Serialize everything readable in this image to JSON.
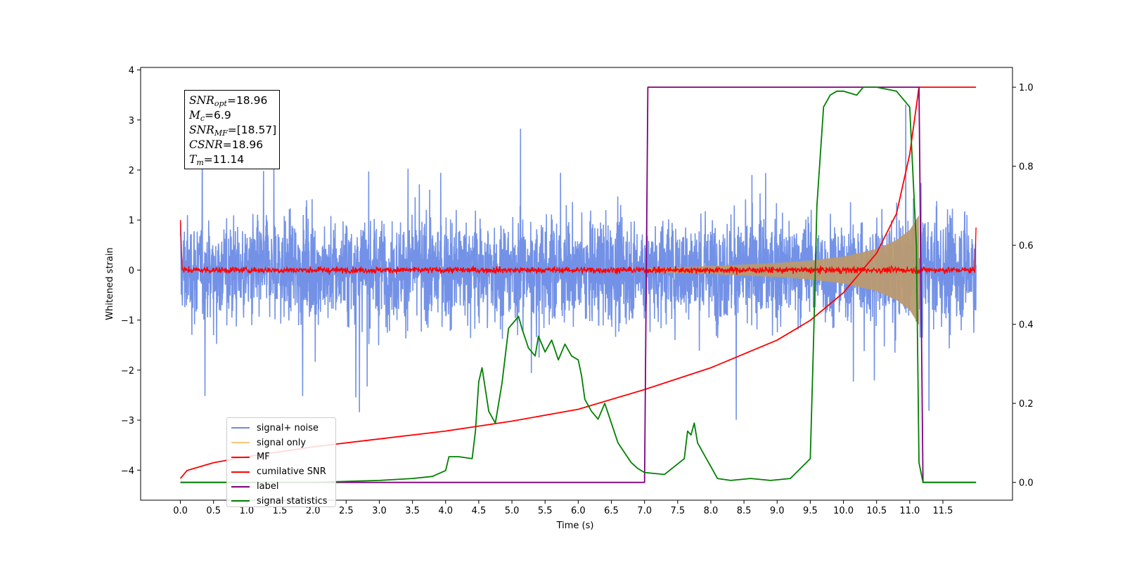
{
  "chart_data": {
    "type": "line",
    "xlabel": "Time (s)",
    "ylabel": "Whitened strain",
    "xlim": [
      -0.6,
      12.55
    ],
    "ylim_left": [
      -4.6,
      4.05
    ],
    "ylim_right": [
      -0.045,
      1.05
    ],
    "x_ticks": [
      "0.0",
      "0.5",
      "1.0",
      "1.5",
      "2.0",
      "2.5",
      "3.0",
      "3.5",
      "4.0",
      "4.5",
      "5.0",
      "5.5",
      "6.0",
      "6.5",
      "7.0",
      "7.5",
      "8.0",
      "8.5",
      "9.0",
      "9.5",
      "10.0",
      "10.5",
      "11.0",
      "11.5"
    ],
    "y_ticks_left": [
      "4",
      "3",
      "2",
      "1",
      "0",
      "−1",
      "−2",
      "−3",
      "−4"
    ],
    "y_ticks_right": [
      "1.0",
      "0.8",
      "0.6",
      "0.4",
      "0.2",
      "0.0"
    ],
    "legend_placement": "lower-left",
    "grid": false,
    "series": [
      {
        "name": "signal+ noise",
        "axis": "left",
        "color": "#6b8ce6",
        "description_values": {
          "x_range": [
            0.0,
            12.0
          ],
          "typical_amplitude": 1.2,
          "max": 3.63,
          "min": -3.82
        }
      },
      {
        "name": "signal only",
        "axis": "left",
        "color": "#f5c77a",
        "envelope": {
          "x": [
            7.0,
            8.0,
            9.0,
            9.5,
            10.0,
            10.5,
            10.8,
            11.0,
            11.14
          ],
          "amp": [
            0.04,
            0.08,
            0.14,
            0.19,
            0.27,
            0.42,
            0.6,
            0.8,
            1.1
          ]
        }
      },
      {
        "name": "MF",
        "axis": "left",
        "color": "#ff0000",
        "description_values": {
          "start": 1.0,
          "baseline": 0.0,
          "noise_amp": 0.08,
          "end": 0.85
        }
      },
      {
        "name": "cumilative SNR",
        "axis": "right",
        "color": "#ff0000",
        "x": [
          0.0,
          0.1,
          0.5,
          1.0,
          2.0,
          3.0,
          4.0,
          5.0,
          6.0,
          7.0,
          8.0,
          9.0,
          9.5,
          10.0,
          10.5,
          10.8,
          11.0,
          11.14,
          11.2,
          12.0
        ],
        "y": [
          0.01,
          0.03,
          0.05,
          0.065,
          0.09,
          0.11,
          0.13,
          0.155,
          0.185,
          0.235,
          0.29,
          0.36,
          0.41,
          0.48,
          0.58,
          0.68,
          0.83,
          1.0,
          1.0,
          1.0
        ]
      },
      {
        "name": "label",
        "axis": "right",
        "color": "#800080",
        "x": [
          0.0,
          7.0,
          7.05,
          11.14,
          11.2,
          12.0
        ],
        "y": [
          0.0,
          0.0,
          1.0,
          1.0,
          0.0,
          0.0
        ]
      },
      {
        "name": "signal statistics",
        "axis": "right",
        "color": "#008000",
        "x": [
          0.0,
          0.5,
          1.0,
          2.0,
          3.0,
          3.5,
          3.8,
          4.0,
          4.05,
          4.2,
          4.4,
          4.45,
          4.5,
          4.55,
          4.65,
          4.75,
          4.85,
          4.95,
          5.05,
          5.1,
          5.15,
          5.25,
          5.35,
          5.4,
          5.5,
          5.6,
          5.7,
          5.8,
          5.9,
          6.0,
          6.05,
          6.1,
          6.2,
          6.3,
          6.4,
          6.5,
          6.6,
          6.8,
          6.9,
          7.0,
          7.3,
          7.6,
          7.65,
          7.7,
          7.75,
          7.8,
          7.9,
          8.0,
          8.1,
          8.3,
          8.6,
          8.9,
          9.2,
          9.5,
          9.55,
          9.6,
          9.7,
          9.8,
          9.9,
          10.0,
          10.2,
          10.3,
          10.5,
          10.8,
          11.0,
          11.1,
          11.14,
          11.2,
          11.3,
          12.0
        ],
        "y": [
          0.0,
          0.0,
          0.0,
          0.0,
          0.005,
          0.01,
          0.015,
          0.03,
          0.065,
          0.065,
          0.06,
          0.13,
          0.255,
          0.29,
          0.18,
          0.15,
          0.25,
          0.39,
          0.41,
          0.42,
          0.39,
          0.34,
          0.32,
          0.37,
          0.33,
          0.36,
          0.31,
          0.35,
          0.32,
          0.31,
          0.27,
          0.21,
          0.18,
          0.16,
          0.2,
          0.15,
          0.1,
          0.05,
          0.035,
          0.025,
          0.02,
          0.06,
          0.13,
          0.12,
          0.15,
          0.1,
          0.07,
          0.04,
          0.01,
          0.005,
          0.01,
          0.005,
          0.01,
          0.06,
          0.36,
          0.7,
          0.95,
          0.98,
          0.99,
          0.99,
          0.98,
          1.0,
          1.0,
          0.99,
          0.95,
          0.6,
          0.05,
          0.0,
          0.0,
          0.0
        ]
      }
    ],
    "annotation": {
      "snr_opt_label": "SNR",
      "snr_opt_sub": "opt",
      "snr_opt_value": "=18.96",
      "mc_label": "M",
      "mc_sub": "c",
      "mc_value": "=6.9",
      "snr_mf_label": "SNR",
      "snr_mf_sub": "MF",
      "snr_mf_value": "=[18.57]",
      "csnr_label": "CSNR",
      "csnr_value": "=18.96",
      "tm_label": "T",
      "tm_sub": "m",
      "tm_value": "=11.14"
    }
  }
}
